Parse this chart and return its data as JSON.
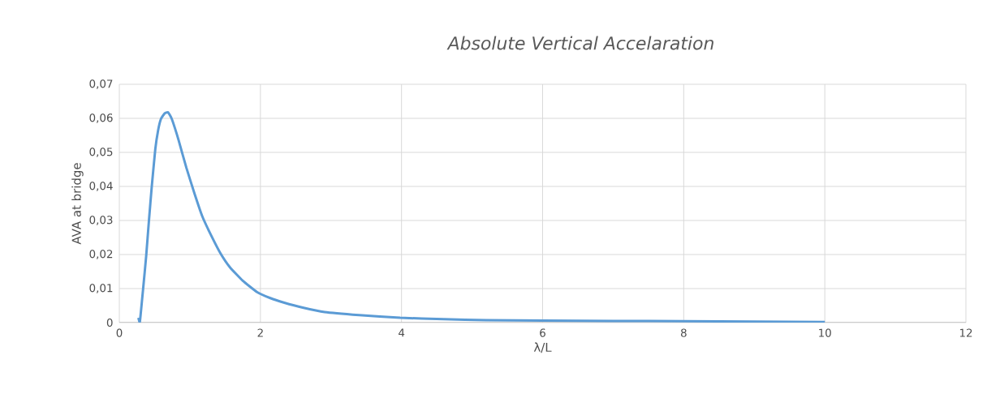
{
  "chart_data": {
    "type": "line",
    "title": "Absolute Vertical Accelaration",
    "xlabel": "λ/L",
    "ylabel": "AVA at bridge",
    "series": [
      {
        "color": "#5b9bd5",
        "x": [
          0.27,
          0.29,
          0.3,
          0.34,
          0.38,
          0.42,
          0.46,
          0.51,
          0.55,
          0.59,
          0.64,
          0.69,
          0.74,
          0.79,
          0.84,
          0.95,
          1.07,
          1.18,
          1.3,
          1.43,
          1.57,
          1.75,
          1.95,
          2.14,
          2.33,
          2.6,
          2.91,
          3.4,
          3.98,
          4.6,
          5.2,
          6,
          7,
          8,
          9,
          10
        ],
        "values": [
          0.0014,
          0.0,
          0.0019,
          0.0105,
          0.0194,
          0.03,
          0.04,
          0.051,
          0.0565,
          0.0598,
          0.0614,
          0.0618,
          0.06,
          0.057,
          0.0536,
          0.0455,
          0.0376,
          0.031,
          0.0257,
          0.0205,
          0.0162,
          0.0123,
          0.009,
          0.0072,
          0.0059,
          0.0044,
          0.0031,
          0.0022,
          0.0014,
          0.001,
          0.0007,
          0.0006,
          0.0005,
          0.0004,
          0.0003,
          0.0002
        ]
      }
    ],
    "xlim": [
      0,
      12
    ],
    "xticks": [
      0,
      2,
      4,
      6,
      8,
      10,
      12
    ],
    "ylim": [
      0,
      0.07
    ],
    "yticks": [
      {
        "value": 0,
        "label": "0"
      },
      {
        "value": 0.01,
        "label": "0,01"
      },
      {
        "value": 0.02,
        "label": "0,02"
      },
      {
        "value": 0.03,
        "label": "0,03"
      },
      {
        "value": 0.04,
        "label": "0,04"
      },
      {
        "value": 0.05,
        "label": "0,05"
      },
      {
        "value": 0.06,
        "label": "0,06"
      },
      {
        "value": 0.07,
        "label": "0,07"
      }
    ],
    "grid": true,
    "legend": false,
    "marker": "none",
    "line_style": "solid"
  }
}
